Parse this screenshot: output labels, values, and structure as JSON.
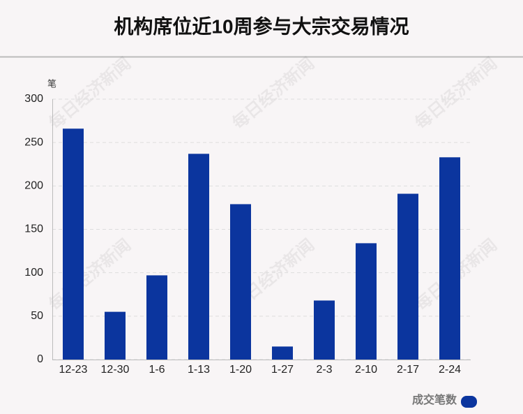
{
  "chart_data": {
    "type": "bar",
    "title": "机构席位近10周参与大宗交易情况",
    "y_label": "笔",
    "categories": [
      "12-23",
      "12-30",
      "1-6",
      "1-13",
      "1-20",
      "1-27",
      "2-3",
      "2-10",
      "2-17",
      "2-24"
    ],
    "series": [
      {
        "name": "成交笔数",
        "color": "#0b359e",
        "values": [
          266,
          55,
          97,
          237,
          179,
          15,
          68,
          134,
          191,
          233
        ]
      }
    ],
    "ylim": [
      0,
      300
    ],
    "yticks": [
      0,
      50,
      100,
      150,
      200,
      250,
      300
    ],
    "grid": true,
    "legend": "bottom-right",
    "watermark": "每日经济新闻"
  }
}
